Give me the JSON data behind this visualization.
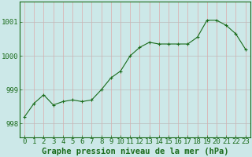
{
  "x": [
    0,
    1,
    2,
    3,
    4,
    5,
    6,
    7,
    8,
    9,
    10,
    11,
    12,
    13,
    14,
    15,
    16,
    17,
    18,
    19,
    20,
    21,
    22,
    23
  ],
  "y": [
    998.2,
    998.6,
    998.85,
    998.55,
    998.65,
    998.7,
    998.65,
    998.7,
    999.0,
    999.35,
    999.55,
    1000.0,
    1000.25,
    1000.4,
    1000.35,
    1000.35,
    1000.35,
    1000.35,
    1000.55,
    1001.05,
    1001.05,
    1000.9,
    1000.65,
    1000.2
  ],
  "line_color": "#1a6b1a",
  "marker": "+",
  "marker_size": 3,
  "bg_color": "#cce8e8",
  "hgrid_color": "#bbbbbb",
  "vgrid_color": "#ddaaaa",
  "yticks": [
    998,
    999,
    1000,
    1001
  ],
  "ylim": [
    997.6,
    1001.6
  ],
  "xlim": [
    -0.5,
    23.5
  ],
  "xlabel": "Graphe pression niveau de la mer (hPa)",
  "xlabel_fontsize": 7.5,
  "tick_fontsize": 6.5,
  "axis_color": "#1a6b1a",
  "spine_color": "#1a6b1a"
}
